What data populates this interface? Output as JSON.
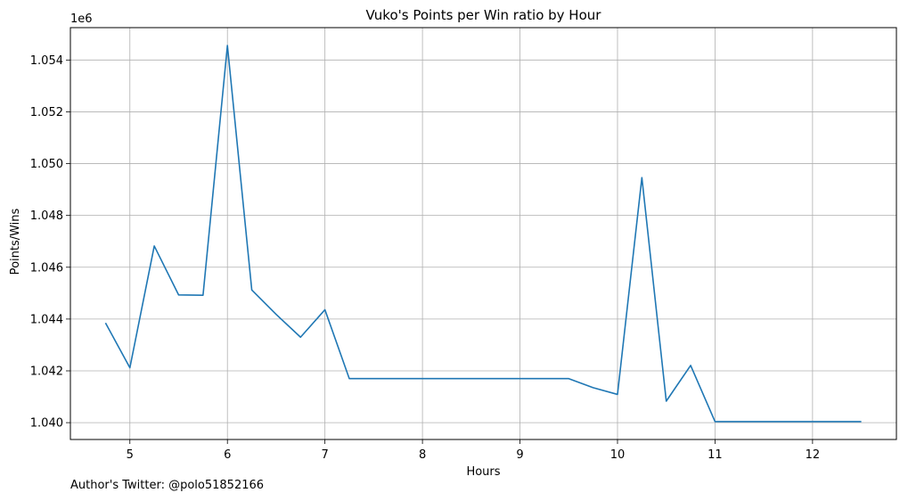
{
  "chart_data": {
    "type": "line",
    "title": "Vuko's Points per Win ratio by Hour",
    "xlabel": "Hours",
    "ylabel": "Points/Wins",
    "offset_label": "1e6",
    "xlim": [
      4.39,
      12.86
    ],
    "ylim": [
      1.03935,
      1.05525
    ],
    "xticks": [
      5,
      6,
      7,
      8,
      9,
      10,
      11,
      12
    ],
    "xtick_labels": [
      "5",
      "6",
      "7",
      "8",
      "9",
      "10",
      "11",
      "12"
    ],
    "yticks": [
      1.04,
      1.042,
      1.044,
      1.046,
      1.048,
      1.05,
      1.052,
      1.054
    ],
    "ytick_labels": [
      "1.040",
      "1.042",
      "1.044",
      "1.046",
      "1.048",
      "1.050",
      "1.052",
      "1.054"
    ],
    "grid": true,
    "line_color": "#1f77b4",
    "series": [
      {
        "x": [
          4.75,
          5.0,
          5.25,
          5.5,
          5.75,
          6.0,
          6.25,
          6.5,
          6.75,
          7.0,
          7.25,
          7.5,
          7.75,
          8.0,
          8.25,
          8.5,
          8.75,
          9.0,
          9.25,
          9.5,
          9.75,
          10.0,
          10.25,
          10.5,
          10.75,
          11.0,
          11.25,
          11.5,
          11.75,
          12.0,
          12.25,
          12.5
        ],
        "y": [
          1.04385,
          1.04212,
          1.04682,
          1.04493,
          1.04492,
          1.05456,
          1.04512,
          1.04418,
          1.0433,
          1.04436,
          1.0417,
          1.0417,
          1.0417,
          1.0417,
          1.0417,
          1.0417,
          1.0417,
          1.0417,
          1.0417,
          1.0417,
          1.04135,
          1.04109,
          1.04946,
          1.04083,
          1.04221,
          1.04004,
          1.04004,
          1.04004,
          1.04004,
          1.04004,
          1.04004,
          1.04004
        ]
      }
    ]
  },
  "footer": {
    "text": "Author's Twitter: @polo51852166"
  }
}
